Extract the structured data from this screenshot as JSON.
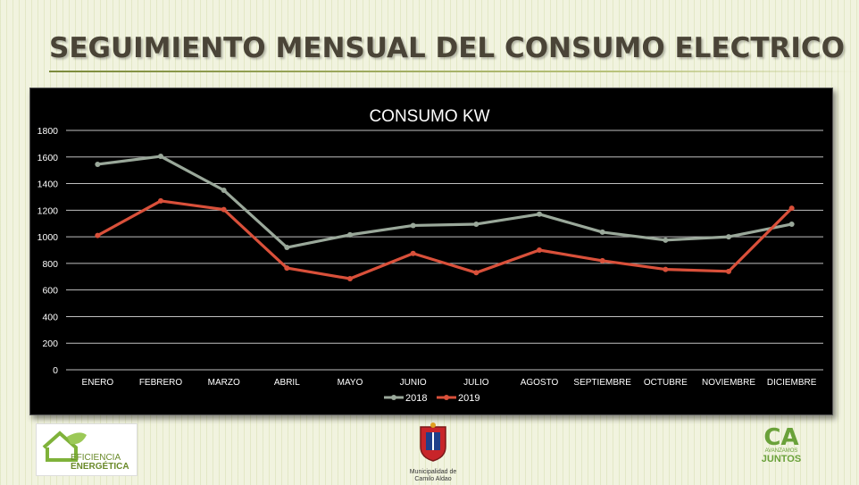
{
  "slide": {
    "title": "SEGUIMIENTO MENSUAL DEL CONSUMO ELECTRICO"
  },
  "chart_data": {
    "type": "line",
    "title": "CONSUMO KW",
    "categories": [
      "ENERO",
      "FEBRERO",
      "MARZO",
      "ABRIL",
      "MAYO",
      "JUNIO",
      "JULIO",
      "AGOSTO",
      "SEPTIEMBRE",
      "OCTUBRE",
      "NOVIEMBRE",
      "DICIEMBRE"
    ],
    "series": [
      {
        "name": "2018",
        "color": "#9aa89a",
        "values": [
          1545,
          1605,
          1350,
          920,
          1015,
          1085,
          1095,
          1170,
          1035,
          975,
          1000,
          1095
        ]
      },
      {
        "name": "2019",
        "color": "#d9503a",
        "values": [
          1010,
          1270,
          1205,
          765,
          685,
          875,
          730,
          900,
          820,
          755,
          740,
          1215
        ]
      }
    ],
    "yticks": [
      0,
      200,
      400,
      600,
      800,
      1000,
      1200,
      1400,
      1600,
      1800
    ],
    "ylim": [
      0,
      1800
    ],
    "grid": true,
    "legend_position": "bottom",
    "background": "#000000"
  },
  "footer": {
    "logo_left_line1": "EFICIENCIA",
    "logo_left_line2": "ENERGÉTICA",
    "logo_center_caption_line1": "Municipalidad de",
    "logo_center_caption_line2": "Camilo Aldao",
    "logo_right_big": "CA",
    "logo_right_small": "AVANZAMOS",
    "logo_right_word": "JUNTOS"
  }
}
